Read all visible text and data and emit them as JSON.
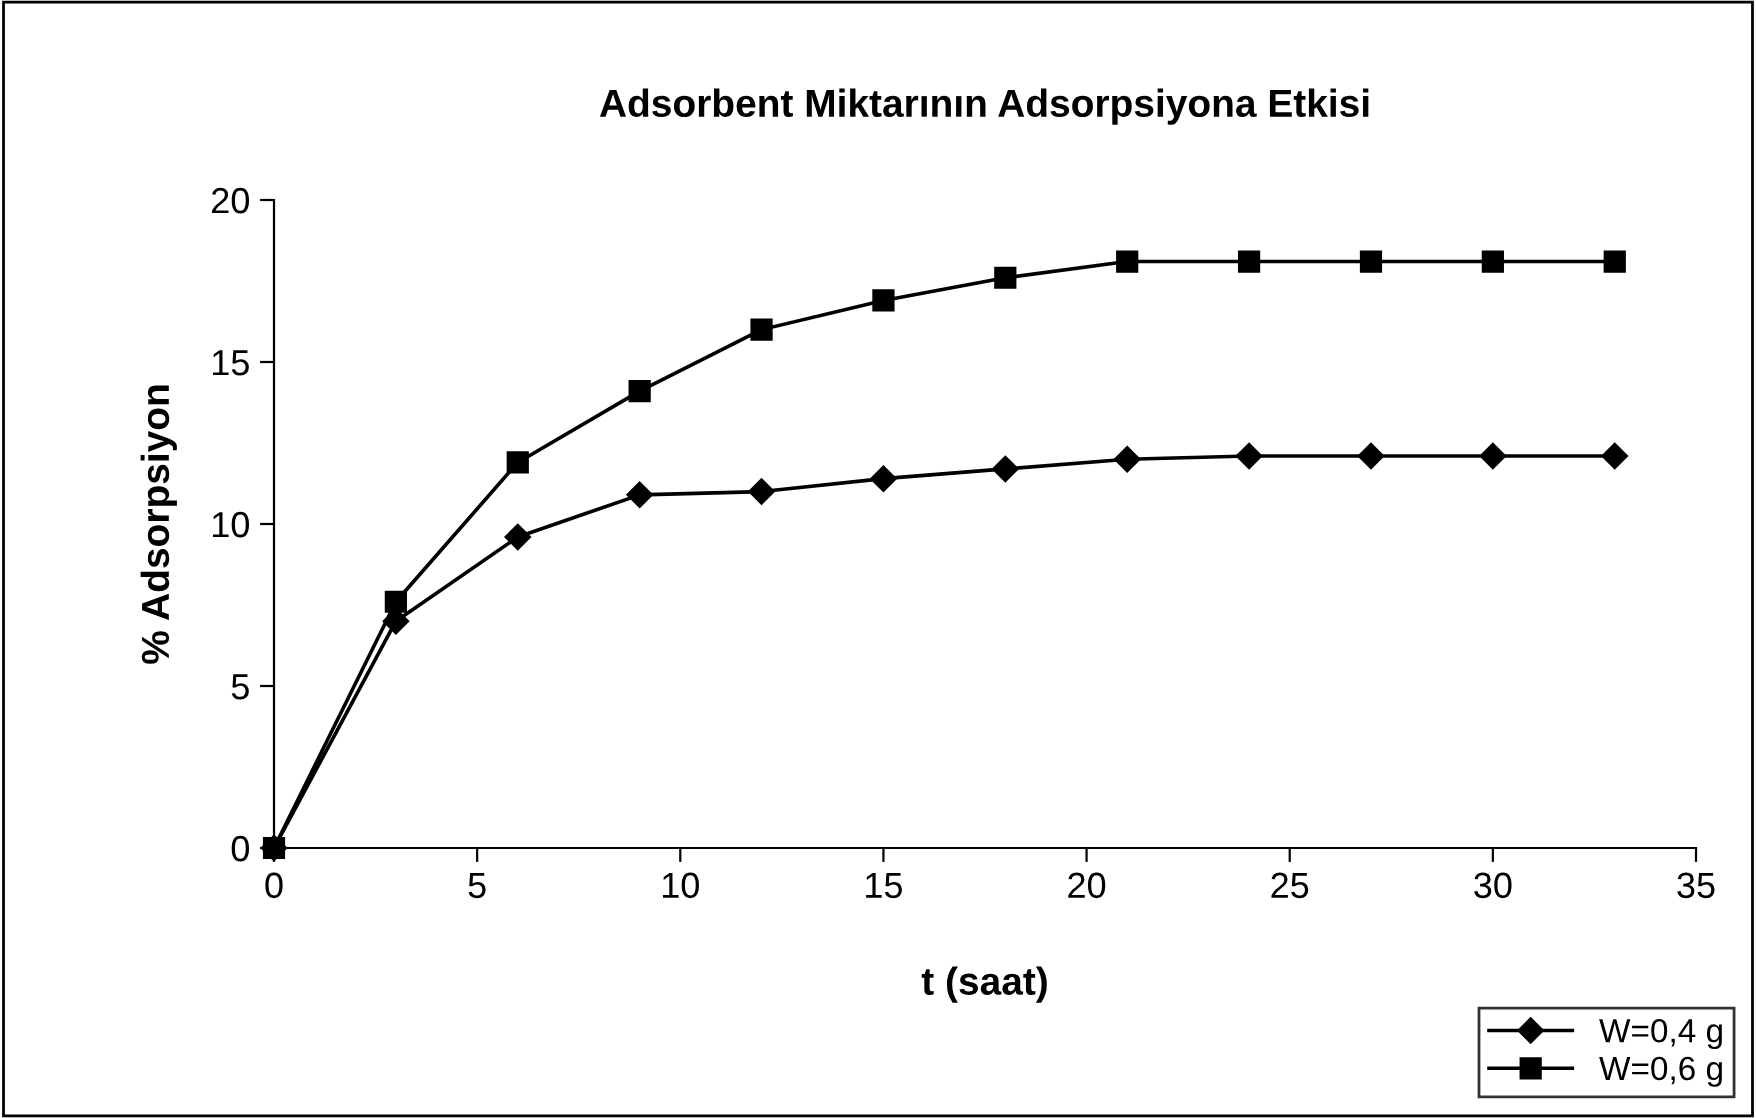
{
  "chart_data": {
    "type": "line",
    "title": "Adsorbent Miktarının Adsorpsiyona Etkisi",
    "xlabel": "t (saat)",
    "ylabel": "% Adsorpsiyon",
    "x": [
      0,
      3,
      6,
      9,
      12,
      15,
      18,
      21,
      24,
      27,
      30,
      33
    ],
    "series": [
      {
        "name": "W=0,4 g",
        "color": "#000000",
        "marker": "diamond",
        "values": [
          0,
          7.0,
          9.6,
          10.9,
          11.0,
          11.4,
          11.7,
          12.0,
          12.1,
          12.1,
          12.1,
          12.1
        ]
      },
      {
        "name": "W=0,6 g",
        "color": "#000000",
        "marker": "square",
        "values": [
          0,
          7.6,
          11.9,
          14.1,
          16.0,
          16.9,
          17.6,
          18.1,
          18.1,
          18.1,
          18.1,
          18.1
        ]
      }
    ],
    "xlim": [
      0,
      35
    ],
    "xticks": [
      0,
      5,
      10,
      15,
      20,
      25,
      30,
      35
    ],
    "ylim": [
      0,
      20
    ],
    "yticks": [
      0,
      5,
      10,
      15,
      20
    ],
    "grid": false,
    "legend": "bottom right",
    "line_style": "solid"
  }
}
